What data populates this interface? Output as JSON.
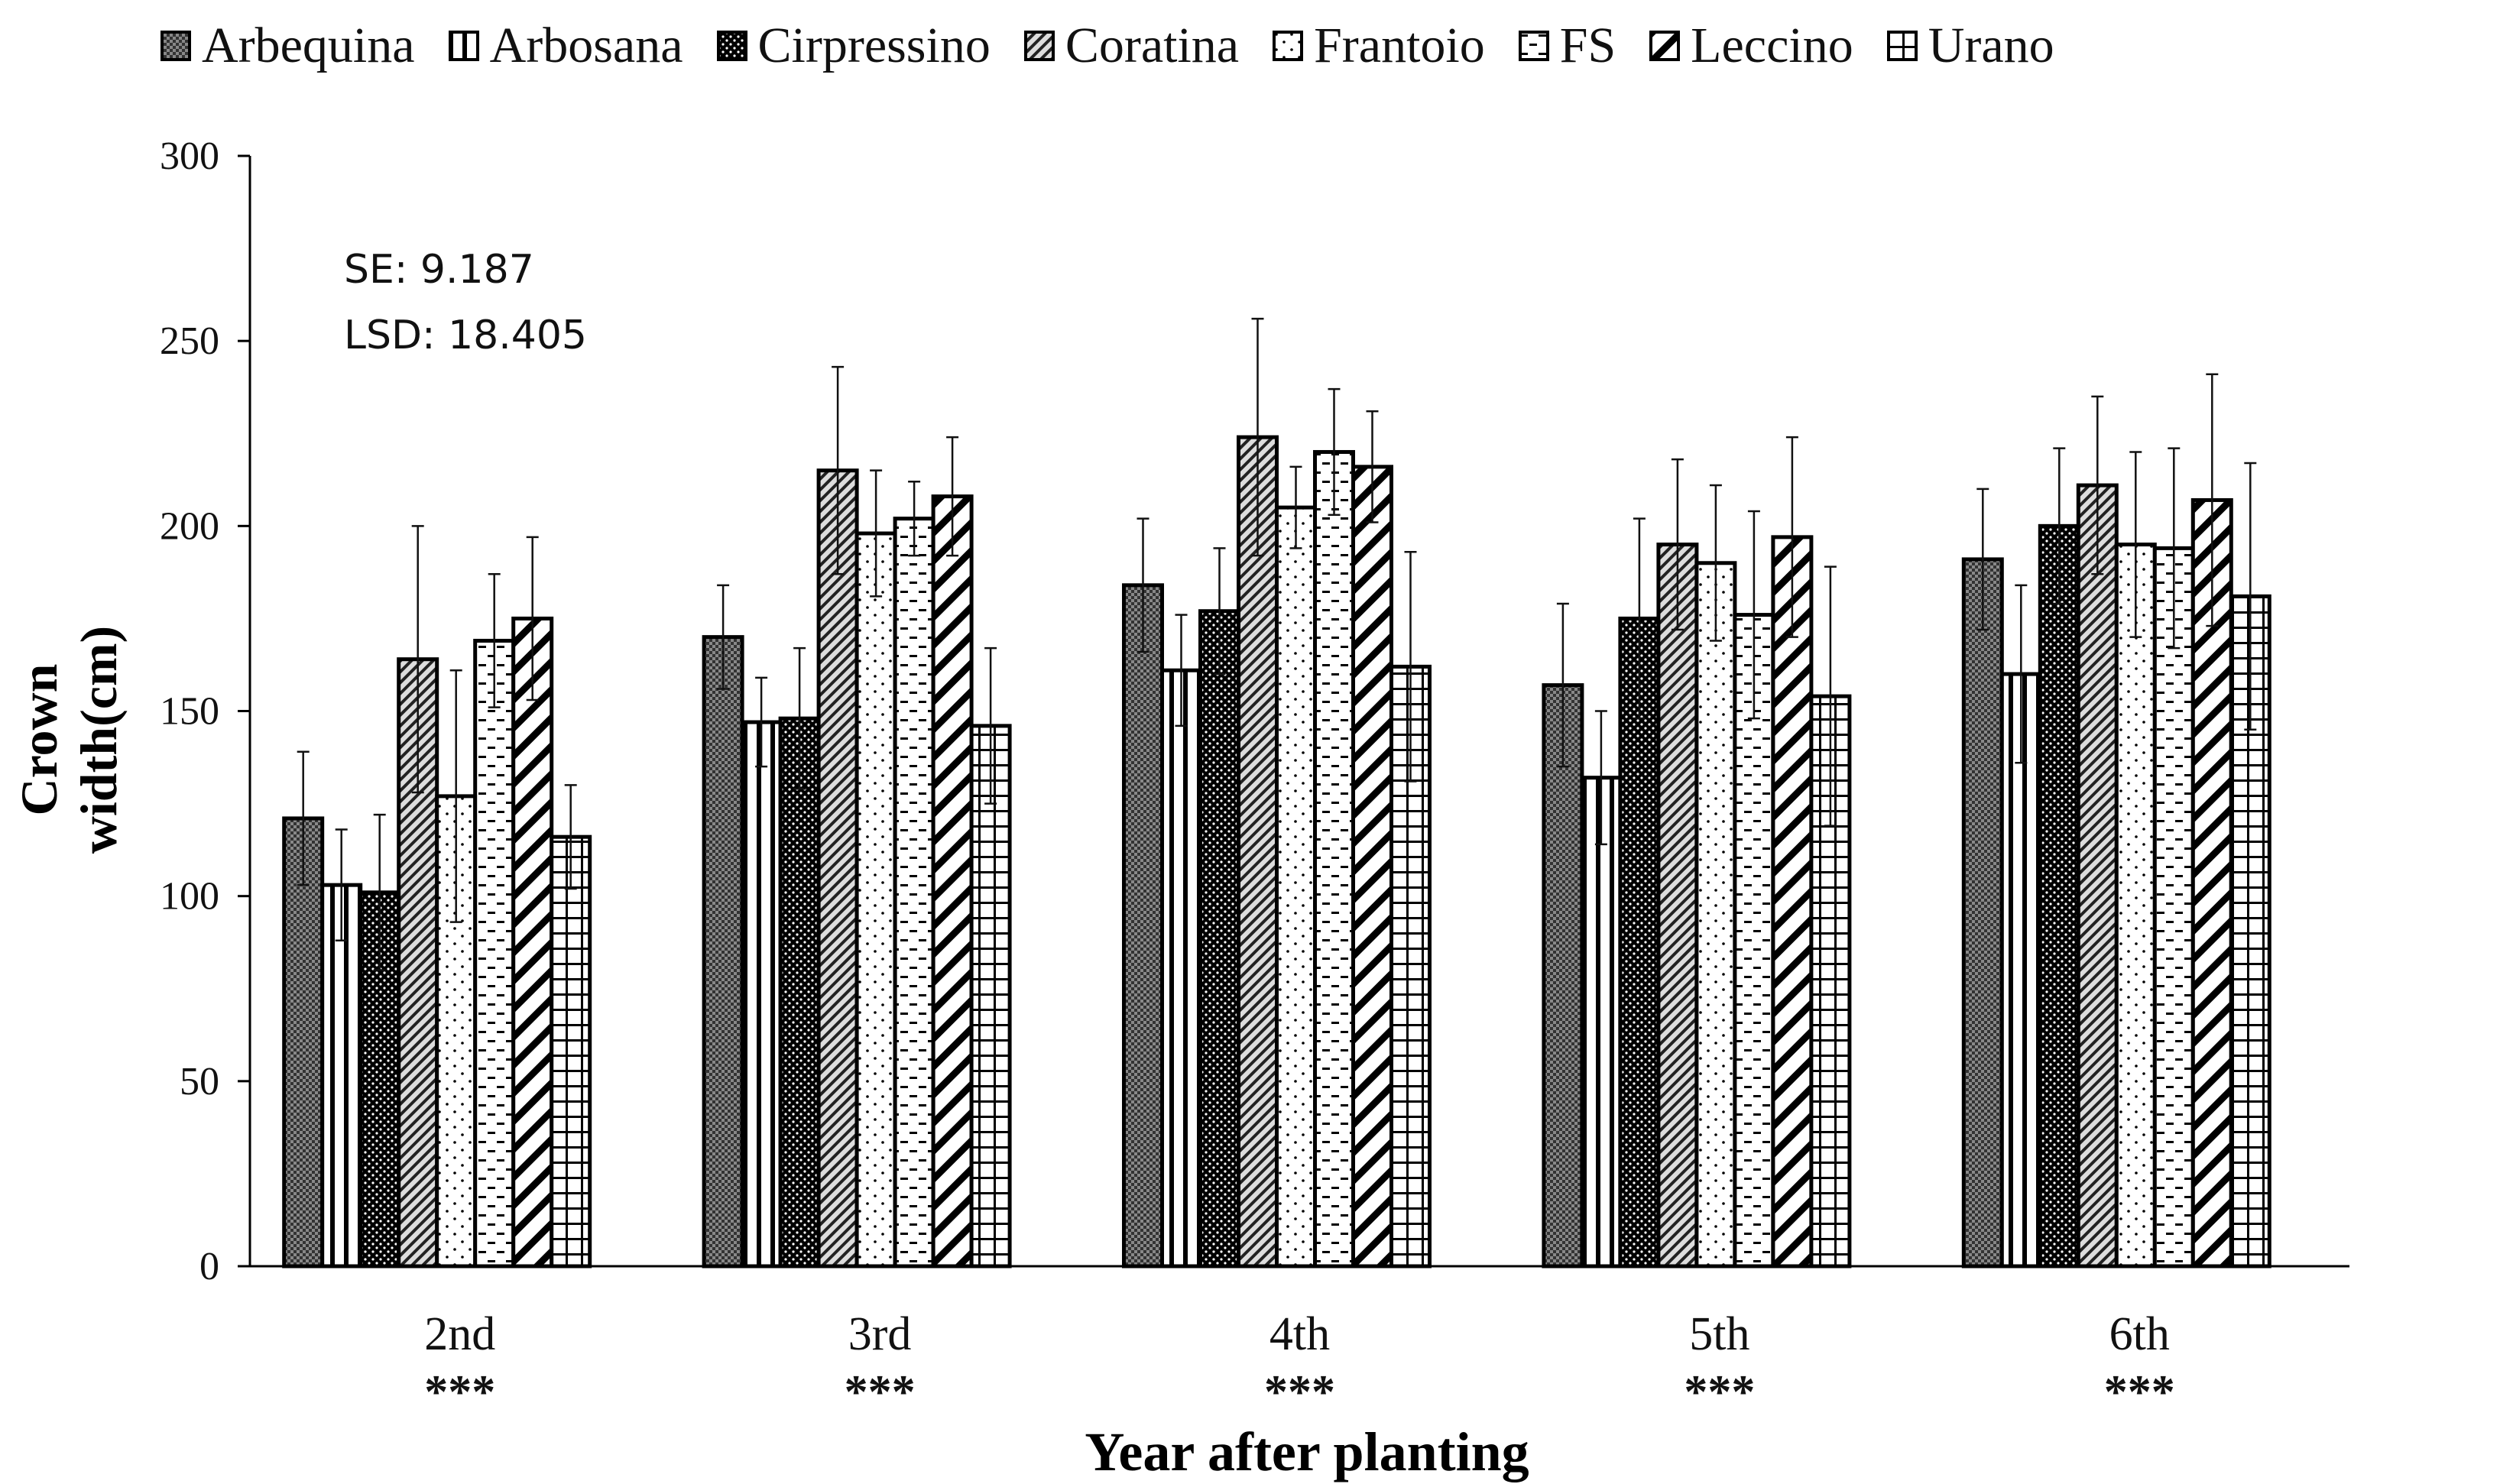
{
  "chart_data": {
    "type": "bar",
    "title": "",
    "xlabel": "Year after planting",
    "ylabel": "Crown width(cm)",
    "ylim": [
      0,
      300
    ],
    "yticks": [
      0,
      50,
      100,
      150,
      200,
      250,
      300
    ],
    "categories": [
      "2nd",
      "3rd",
      "4th",
      "5th",
      "6th"
    ],
    "significance": [
      "***",
      "***",
      "***",
      "***",
      "***"
    ],
    "legend_position": "top",
    "annotations": {
      "se": "SE: 9.187",
      "lsd": "LSD: 18.405"
    },
    "series": [
      {
        "name": "Arbequina",
        "pattern": "dense-check",
        "values": [
          121,
          170,
          184,
          157,
          191
        ],
        "errors": [
          18,
          14,
          18,
          22,
          19
        ]
      },
      {
        "name": "Arbosana",
        "pattern": "vertical-lines",
        "values": [
          103,
          147,
          161,
          132,
          160
        ],
        "errors": [
          15,
          12,
          15,
          18,
          24
        ]
      },
      {
        "name": "Cirpressino",
        "pattern": "black-dots",
        "values": [
          101,
          148,
          177,
          175,
          200
        ],
        "errors": [
          21,
          19,
          17,
          27,
          21
        ]
      },
      {
        "name": "Coratina",
        "pattern": "thin-diagonal",
        "values": [
          164,
          215,
          224,
          195,
          211
        ],
        "errors": [
          36,
          28,
          32,
          23,
          24
        ]
      },
      {
        "name": "Frantoio",
        "pattern": "sparse-dots",
        "values": [
          127,
          198,
          205,
          190,
          195
        ],
        "errors": [
          34,
          17,
          11,
          21,
          25
        ]
      },
      {
        "name": "FS",
        "pattern": "dashes",
        "values": [
          169,
          202,
          220,
          176,
          194
        ],
        "errors": [
          18,
          10,
          17,
          28,
          27
        ]
      },
      {
        "name": "Leccino",
        "pattern": "thick-diagonal",
        "values": [
          175,
          208,
          216,
          197,
          207
        ],
        "errors": [
          22,
          16,
          15,
          27,
          34
        ]
      },
      {
        "name": "Urano",
        "pattern": "grid",
        "values": [
          116,
          146,
          162,
          154,
          181
        ],
        "errors": [
          14,
          21,
          31,
          35,
          36
        ]
      }
    ]
  }
}
